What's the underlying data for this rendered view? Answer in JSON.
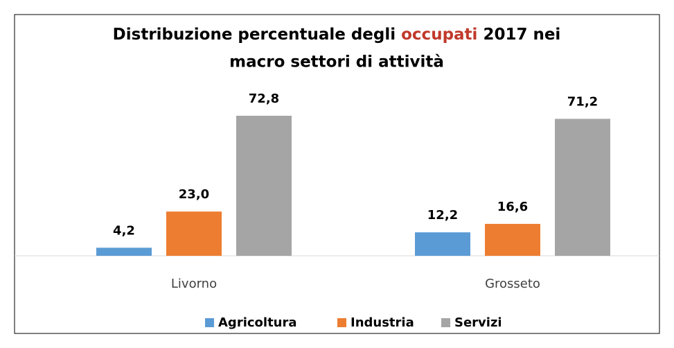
{
  "chart_data": {
    "type": "bar",
    "title": [
      "Distribuzione percentuale degli",
      "occupati",
      "2017 nei",
      "macro settori di attività"
    ],
    "categories": [
      "Livorno",
      "Grosseto"
    ],
    "series": [
      {
        "name": "Agricoltura",
        "color": "#5b9bd5",
        "values": [
          4.2,
          12.2
        ],
        "value_labels": [
          "4,2",
          "12,2"
        ]
      },
      {
        "name": "Industria",
        "color": "#ed7d31",
        "values": [
          23.0,
          16.6
        ],
        "value_labels": [
          "23,0",
          "16,6"
        ]
      },
      {
        "name": "Servizi",
        "color": "#a5a5a5",
        "values": [
          72.8,
          71.2
        ],
        "value_labels": [
          "72,8",
          "71,2"
        ]
      }
    ],
    "ylim": [
      0,
      80
    ],
    "legend": "bottom"
  }
}
